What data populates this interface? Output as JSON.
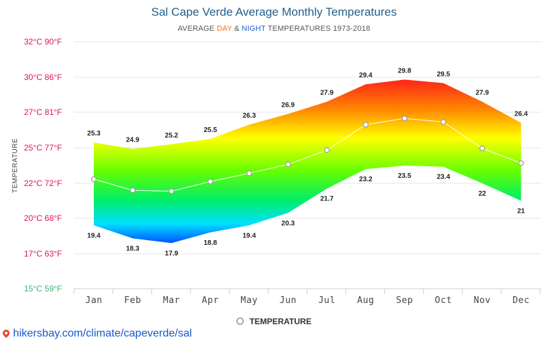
{
  "chart_data": {
    "type": "area",
    "title": "Sal Cape Verde Average Monthly Temperatures",
    "subtitle": {
      "prefix": "AVERAGE ",
      "day": "DAY",
      "amp": " & ",
      "night": "NIGHT",
      "suffix": " TEMPERATURES 1973-2018"
    },
    "ylabel": "TEMPERATURE",
    "categories": [
      "Jan",
      "Feb",
      "Mar",
      "Apr",
      "May",
      "Jun",
      "Jul",
      "Aug",
      "Sep",
      "Oct",
      "Nov",
      "Dec"
    ],
    "series": [
      {
        "name": "Day",
        "values": [
          25.3,
          24.9,
          25.2,
          25.5,
          26.3,
          26.9,
          27.9,
          29.4,
          29.8,
          29.5,
          27.9,
          26.4
        ]
      },
      {
        "name": "Night",
        "values": [
          19.4,
          18.3,
          17.9,
          18.8,
          19.4,
          20.3,
          21.7,
          23.2,
          23.5,
          23.4,
          22,
          21
        ]
      },
      {
        "name": "TEMPERATURE",
        "values": [
          22.35,
          21.6,
          21.55,
          22.15,
          22.85,
          23.6,
          24.8,
          26.3,
          26.65,
          26.45,
          24.95,
          23.7
        ]
      }
    ],
    "yticks": [
      {
        "value": 15,
        "label": "15°C 59°F",
        "color": "#3cb371"
      },
      {
        "value": 17,
        "label": "17°C 63°F",
        "color": "#e0115f"
      },
      {
        "value": 20,
        "label": "20°C 68°F",
        "color": "#e0115f"
      },
      {
        "value": 22,
        "label": "22°C 72°F",
        "color": "#e0115f"
      },
      {
        "value": 25,
        "label": "25°C 77°F",
        "color": "#e0115f"
      },
      {
        "value": 27,
        "label": "27°C 81°F",
        "color": "#e0115f"
      },
      {
        "value": 30,
        "label": "30°C 86°F",
        "color": "#e0115f"
      },
      {
        "value": 32,
        "label": "32°C 90°F",
        "color": "#e0115f"
      }
    ],
    "ylim": [
      15,
      32
    ],
    "grid": true,
    "legend": {
      "label": "TEMPERATURE",
      "placement": "bottom-center"
    }
  },
  "source": "hikersbay.com/climate/capeverde/sal"
}
